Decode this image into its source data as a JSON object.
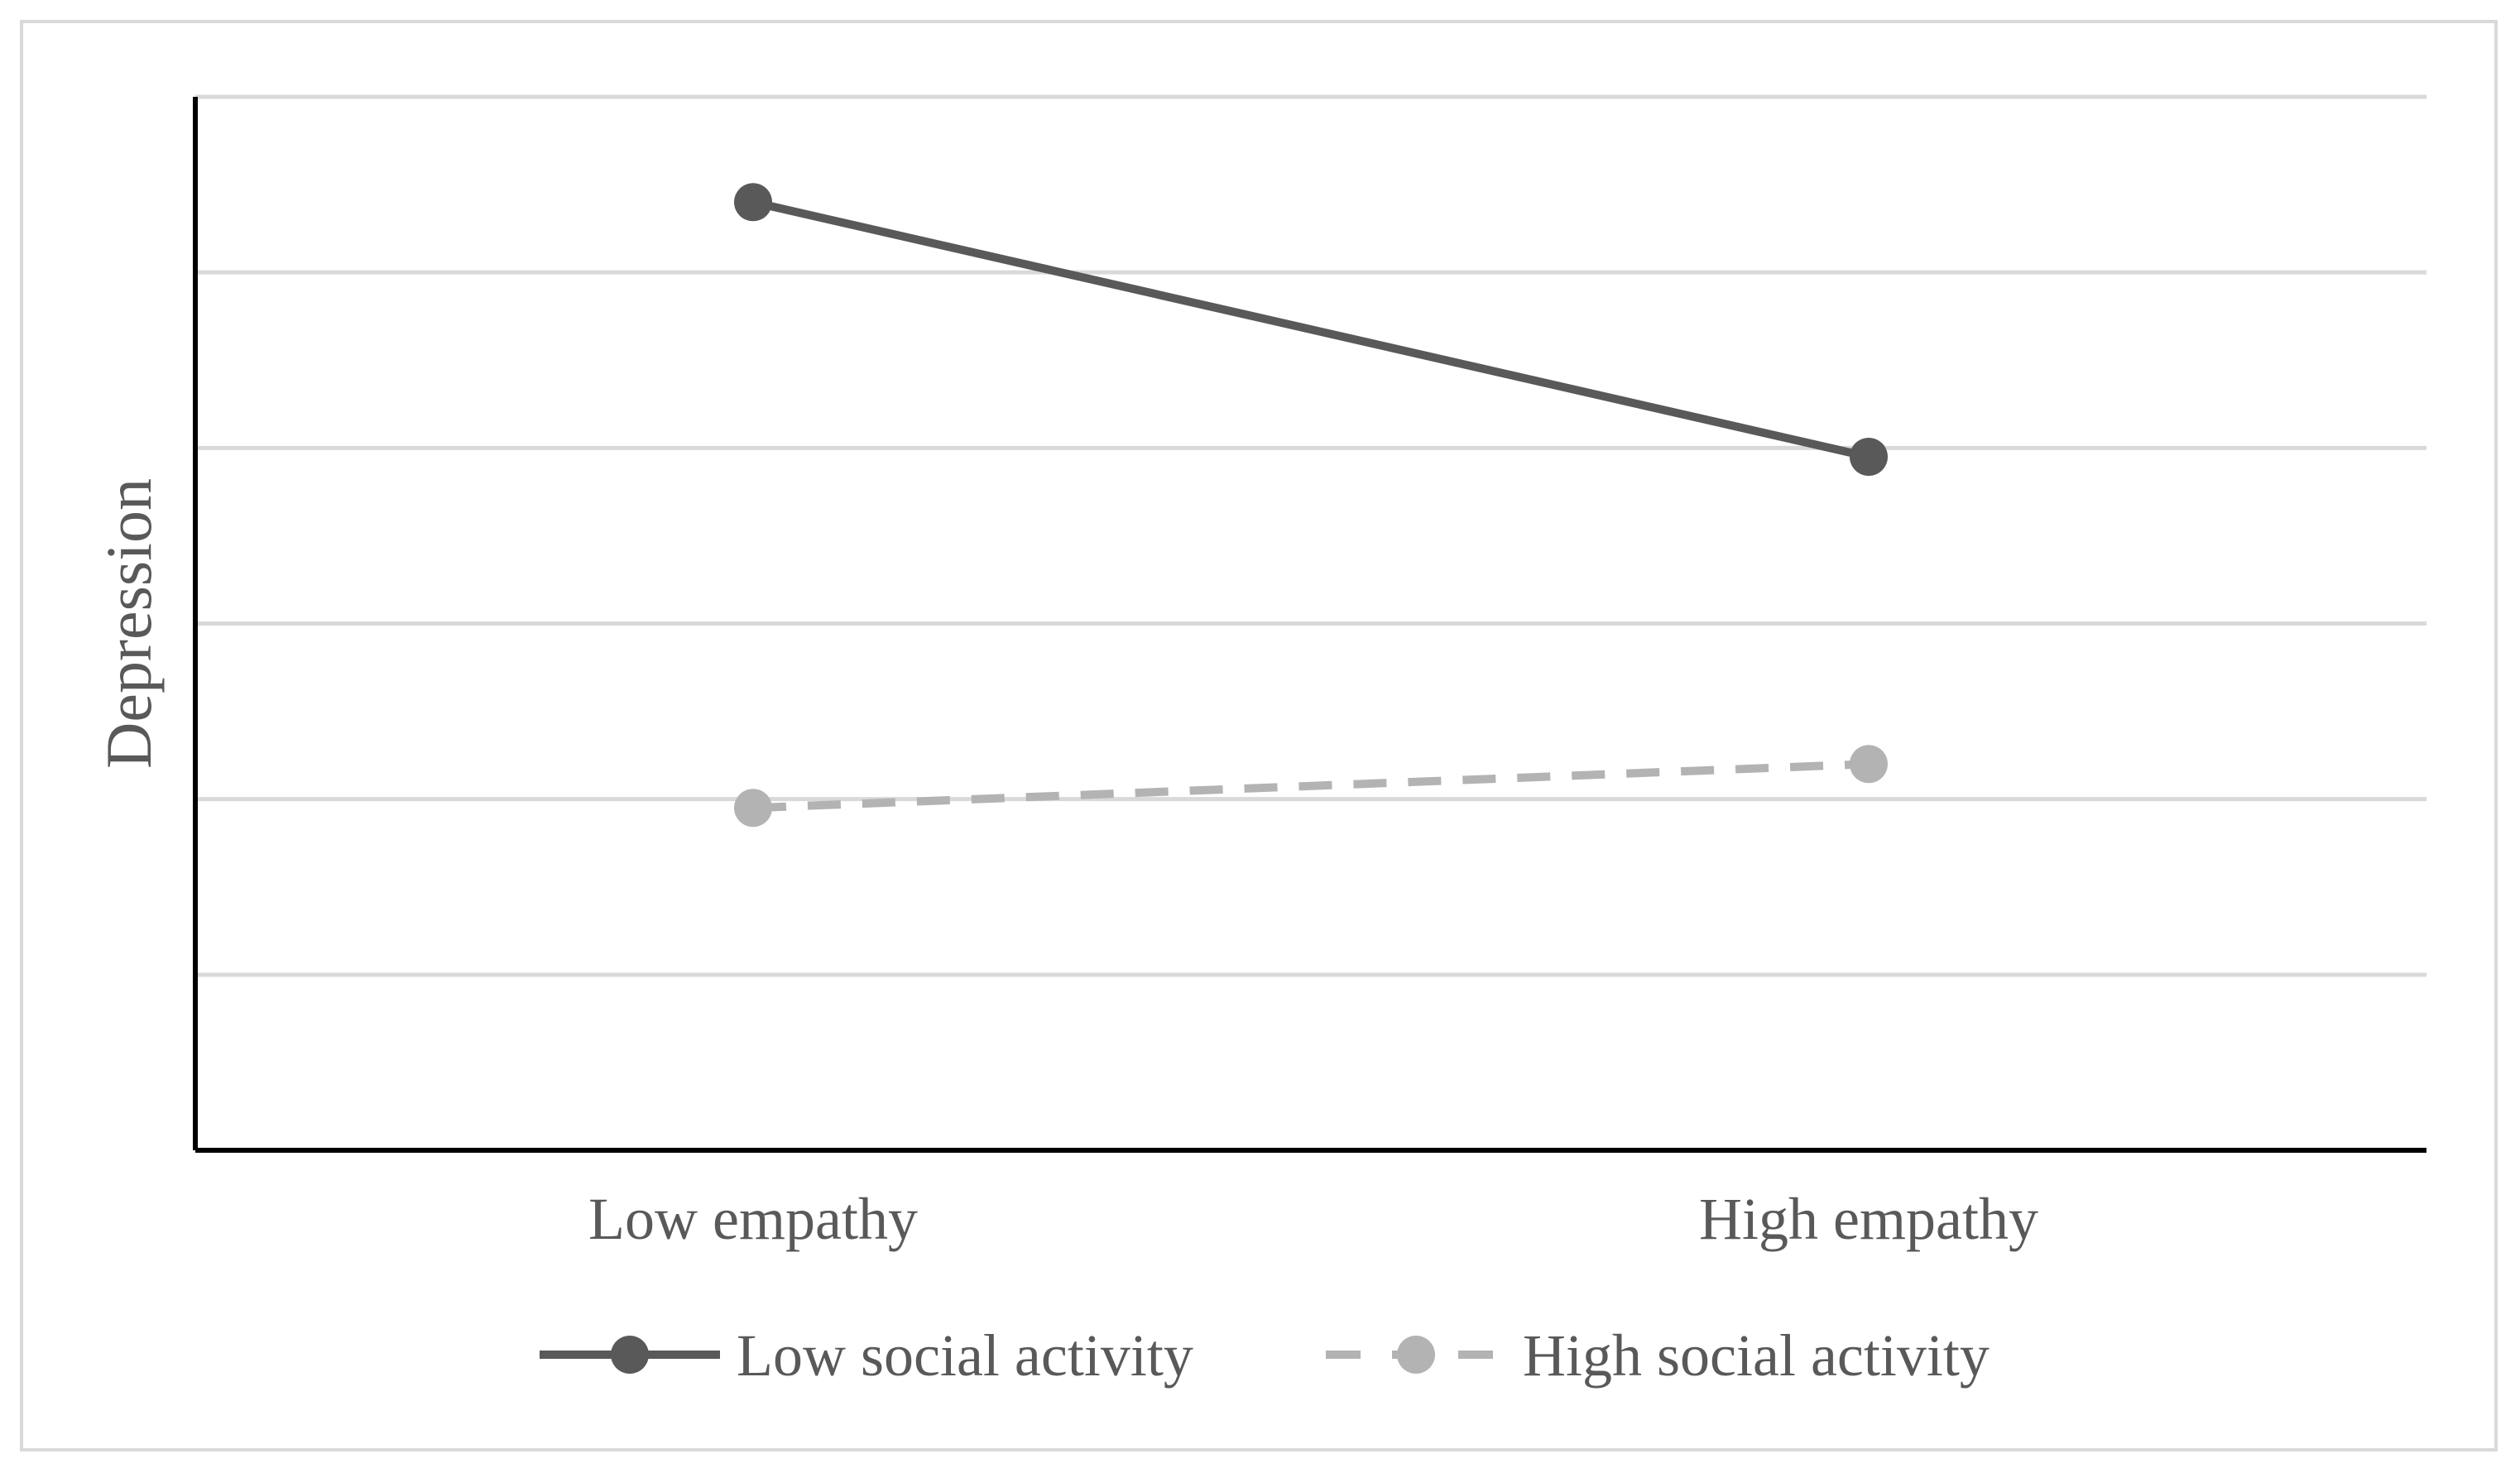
{
  "chart_data": {
    "type": "line",
    "title": "",
    "xlabel": "",
    "ylabel": "Depression",
    "categories": [
      "Low empathy",
      "High empathy"
    ],
    "ylim": [
      0,
      6
    ],
    "grid": true,
    "legend_position": "bottom",
    "series": [
      {
        "name": "Low social activity",
        "values": [
          5.4,
          3.95
        ],
        "color": "#595959",
        "style": "solid"
      },
      {
        "name": "High social activity",
        "values": [
          1.95,
          2.2
        ],
        "color": "#b3b3b3",
        "style": "dashed"
      }
    ]
  }
}
